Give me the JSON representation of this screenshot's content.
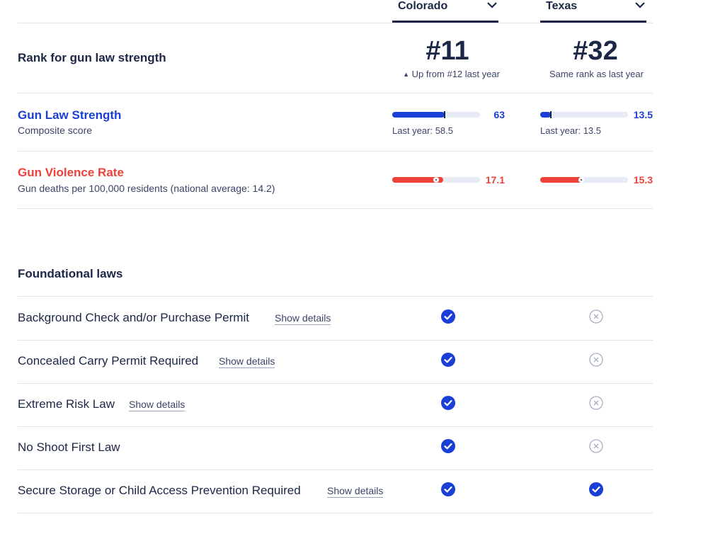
{
  "states": [
    {
      "name": "Colorado"
    },
    {
      "name": "Texas"
    }
  ],
  "rank": {
    "label": "Rank for gun law strength",
    "colorado": {
      "value": "#11",
      "note": "Up from #12 last year"
    },
    "texas": {
      "value": "#32",
      "note": "Same rank as last year"
    }
  },
  "strength": {
    "title": "Gun Law Strength",
    "subtitle": "Composite score",
    "color": "#1a3fd6",
    "colorado": {
      "value": "63",
      "fraction": 0.6,
      "last_year_fraction": 0.6,
      "last_year": "Last year: 58.5"
    },
    "texas": {
      "value": "13.5",
      "fraction": 0.12,
      "last_year_fraction": 0.12,
      "last_year": "Last year: 13.5"
    }
  },
  "violence": {
    "title": "Gun Violence Rate",
    "subtitle": "Gun deaths per 100,000 residents (national average: 14.2)",
    "color": "#f0403a",
    "colorado": {
      "value": "17.1",
      "fraction": 0.58
    },
    "texas": {
      "value": "15.3",
      "fraction": 0.48
    }
  },
  "foundational": {
    "heading": "Foundational laws",
    "show_details_label": "Show details",
    "laws": [
      {
        "name": "Background Check and/or Purchase Permit",
        "has_details": true,
        "colorado": "check",
        "texas": "x"
      },
      {
        "name": "Concealed Carry Permit Required",
        "has_details": true,
        "colorado": "check",
        "texas": "x"
      },
      {
        "name": "Extreme Risk Law",
        "has_details": true,
        "colorado": "check",
        "texas": "x"
      },
      {
        "name": "No Shoot First Law",
        "has_details": false,
        "colorado": "check",
        "texas": "x"
      },
      {
        "name": "Secure Storage or Child Access Prevention Required",
        "has_details": true,
        "colorado": "check",
        "texas": "check"
      }
    ]
  }
}
